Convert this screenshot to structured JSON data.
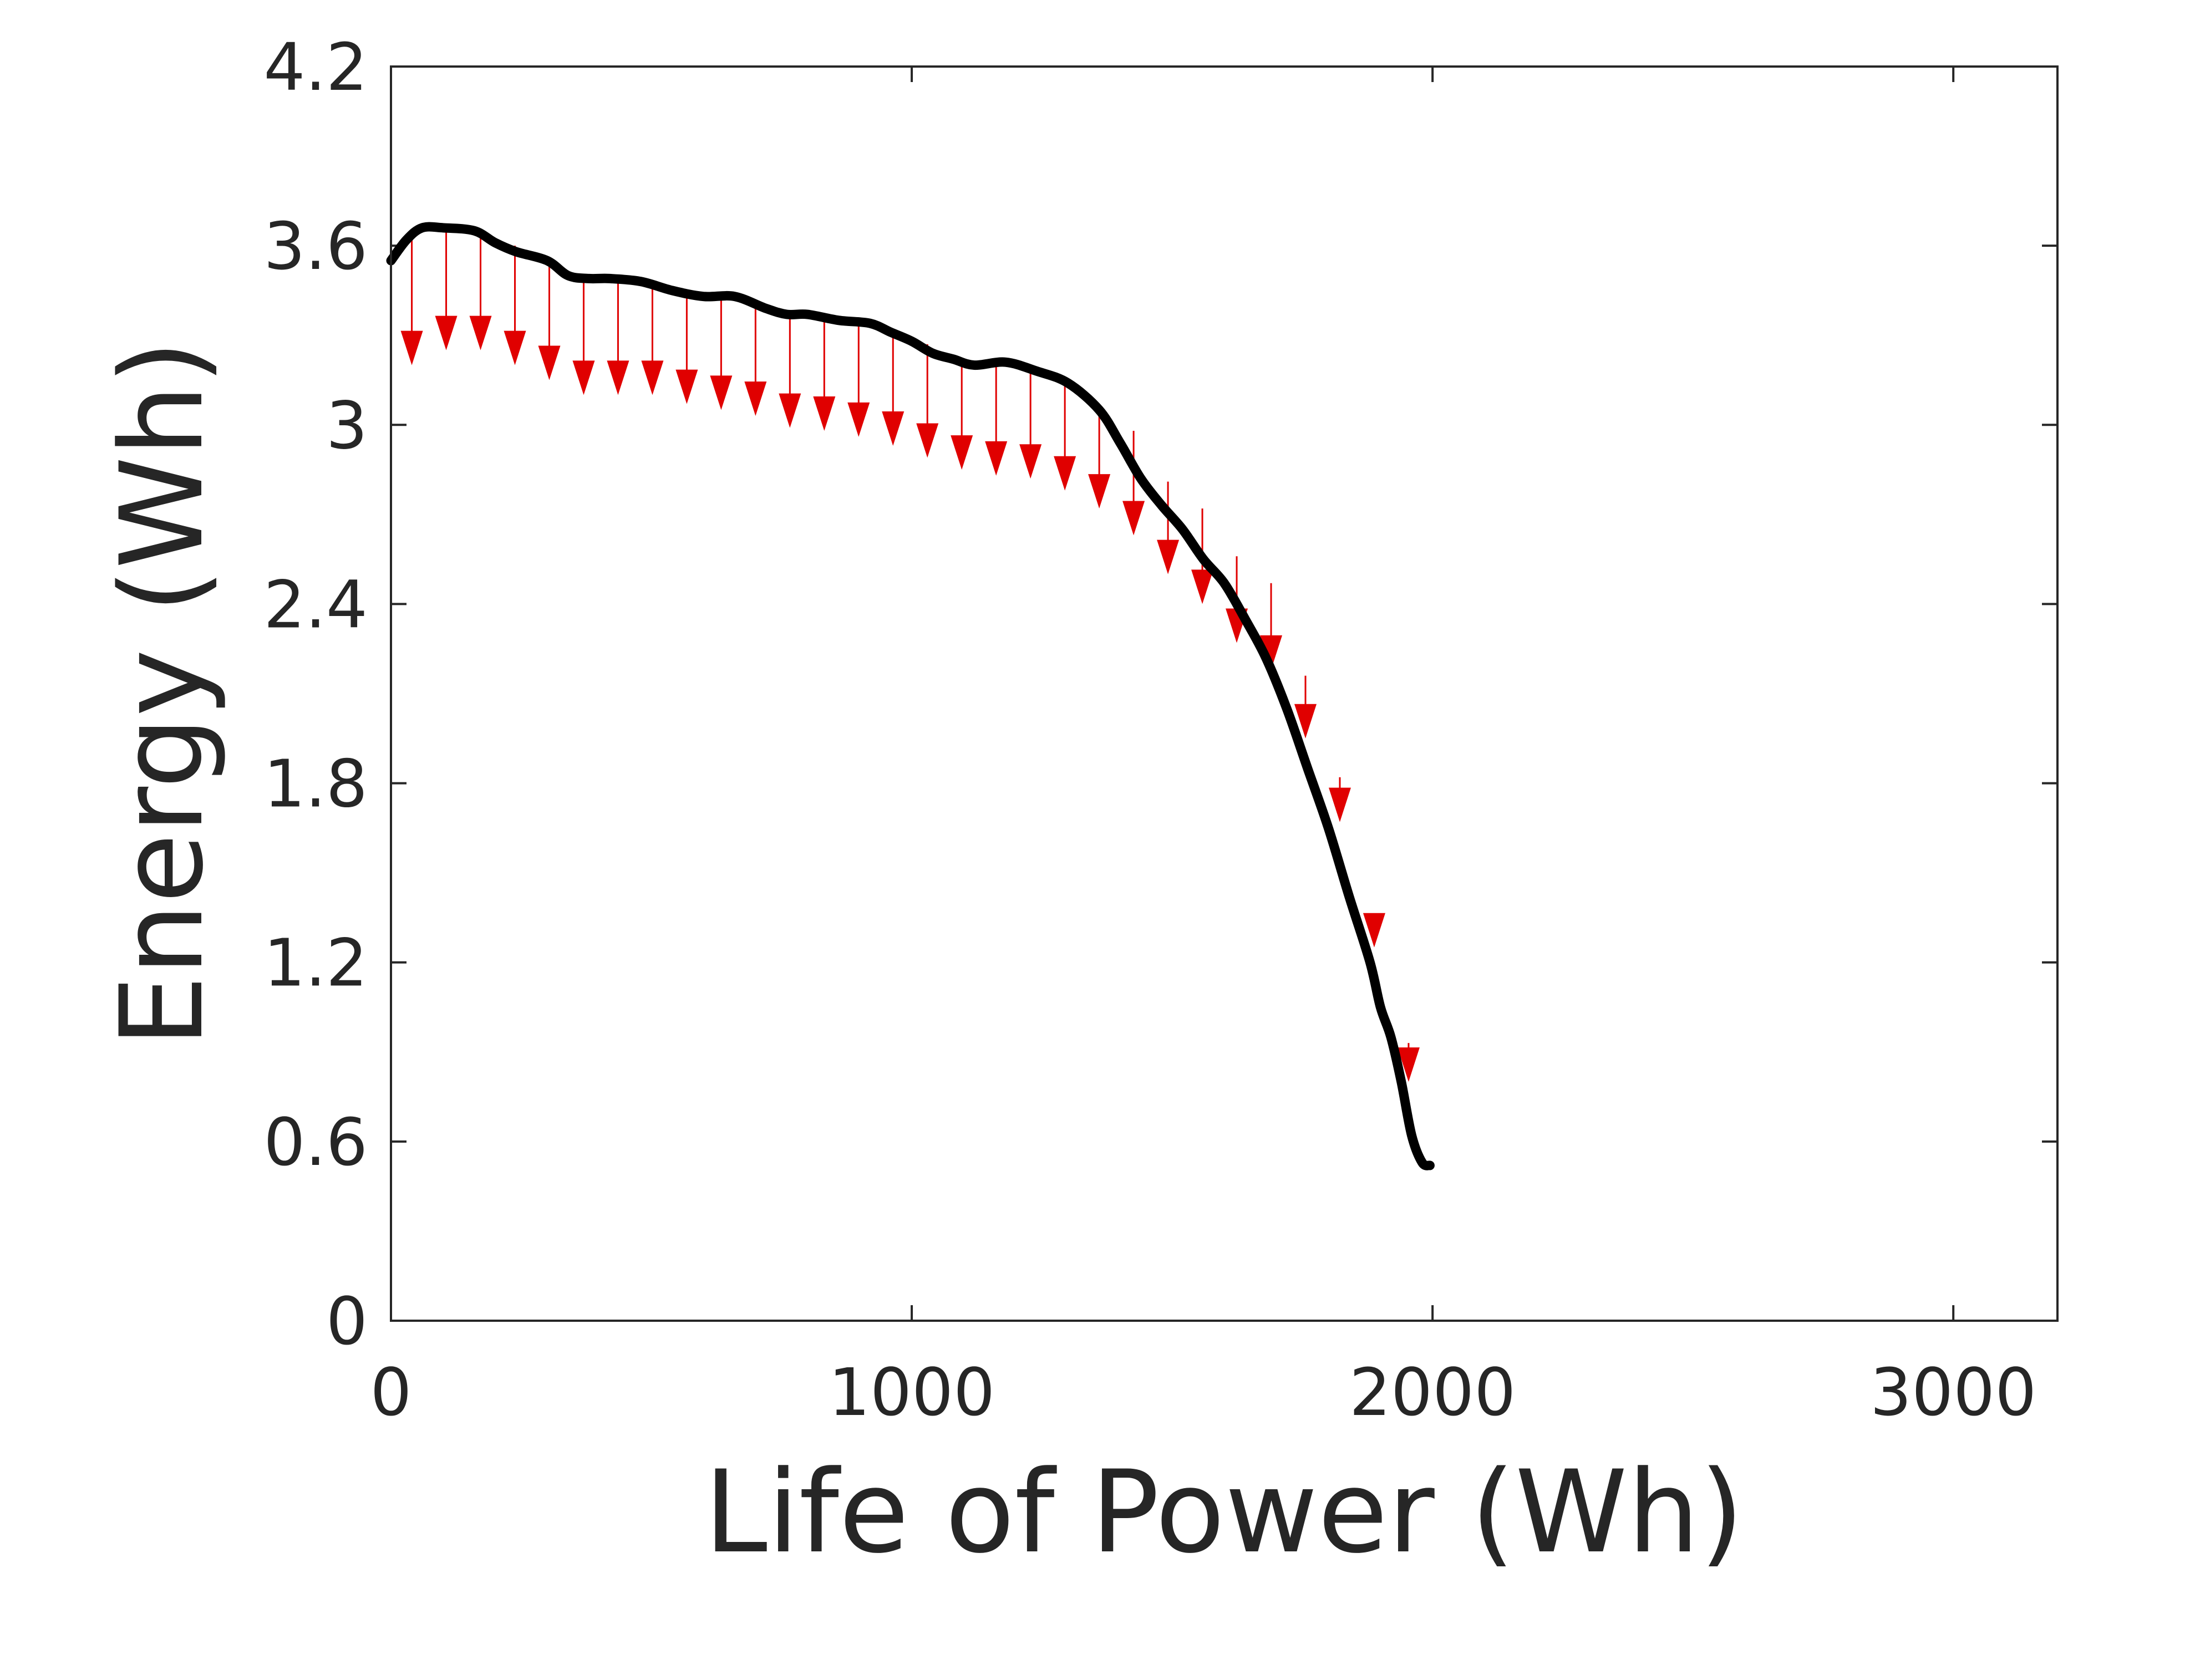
{
  "chart_data": {
    "type": "line",
    "title": "",
    "xlabel": "Life of Power (Wh)",
    "ylabel": "Energy (Wh)",
    "xlim": [
      0,
      3200
    ],
    "ylim": [
      0,
      4.2
    ],
    "xticks": [
      0,
      1000,
      2000,
      3000
    ],
    "xtick_labels": [
      "0",
      "1000",
      "2000",
      "3000"
    ],
    "yticks": [
      0,
      0.6,
      1.2,
      1.8,
      2.4,
      3,
      3.6,
      4.2
    ],
    "ytick_labels": [
      "0",
      "0.6",
      "1.2",
      "1.8",
      "2.4",
      "3",
      "3.6",
      "4.2"
    ],
    "grid": false,
    "series": [
      {
        "name": "Energy",
        "color": "#000000",
        "x": [
          0,
          30,
          60,
          100,
          160,
          200,
          240,
          300,
          340,
          380,
          420,
          480,
          540,
          600,
          660,
          720,
          760,
          800,
          860,
          920,
          960,
          1000,
          1040,
          1080,
          1120,
          1180,
          1240,
          1300,
          1360,
          1400,
          1440,
          1480,
          1520,
          1560,
          1600,
          1640,
          1680,
          1720,
          1760,
          1800,
          1840,
          1880,
          1900,
          1920,
          1940,
          1960,
          1980,
          1995
        ],
        "y": [
          3.55,
          3.62,
          3.66,
          3.66,
          3.65,
          3.61,
          3.58,
          3.55,
          3.5,
          3.49,
          3.49,
          3.48,
          3.45,
          3.43,
          3.43,
          3.39,
          3.37,
          3.37,
          3.35,
          3.34,
          3.31,
          3.28,
          3.24,
          3.22,
          3.2,
          3.21,
          3.18,
          3.14,
          3.05,
          2.94,
          2.82,
          2.73,
          2.65,
          2.55,
          2.47,
          2.35,
          2.22,
          2.05,
          1.85,
          1.65,
          1.42,
          1.2,
          1.05,
          0.95,
          0.8,
          0.62,
          0.53,
          0.52
        ]
      }
    ],
    "arrows": {
      "color": "#e00000",
      "x": [
        40,
        106,
        172,
        238,
        304,
        370,
        436,
        502,
        568,
        634,
        700,
        766,
        832,
        898,
        964,
        1030,
        1096,
        1162,
        1228,
        1294,
        1360,
        1426,
        1492,
        1558,
        1624,
        1690,
        1756,
        1822,
        1888,
        1954
      ],
      "y_start": [
        3.62,
        3.66,
        3.65,
        3.6,
        3.56,
        3.5,
        3.49,
        3.48,
        3.45,
        3.43,
        3.42,
        3.37,
        3.36,
        3.34,
        3.31,
        3.27,
        3.22,
        3.21,
        3.19,
        3.14,
        3.05,
        2.98,
        2.81,
        2.72,
        2.56,
        2.47,
        2.16,
        1.82,
        1.35,
        0.93
      ],
      "y_end": [
        3.2,
        3.25,
        3.25,
        3.2,
        3.15,
        3.1,
        3.1,
        3.1,
        3.07,
        3.05,
        3.03,
        2.99,
        2.98,
        2.96,
        2.93,
        2.89,
        2.85,
        2.83,
        2.82,
        2.78,
        2.72,
        2.63,
        2.5,
        2.4,
        2.27,
        2.18,
        1.95,
        1.67,
        1.25,
        0.8
      ]
    }
  }
}
